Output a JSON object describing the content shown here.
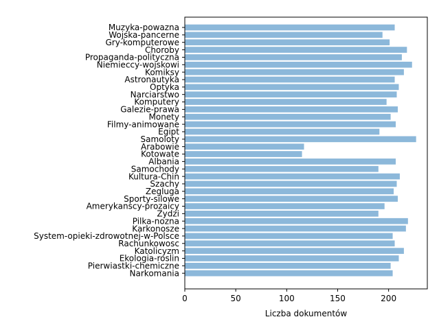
{
  "chart_data": {
    "type": "bar",
    "orientation": "horizontal",
    "categories": [
      "Muzyka-powazna",
      "Wojska-pancerne",
      "Gry-komputerowe",
      "Choroby",
      "Propaganda-polityczna",
      "Niemieccy-wojskowi",
      "Komiksy",
      "Astronautyka",
      "Optyka",
      "Narciarstwo",
      "Komputery",
      "Galezie-prawa",
      "Monety",
      "Filmy-animowane",
      "Egipt",
      "Samoloty",
      "Arabowie",
      "Kotowate",
      "Albania",
      "Samochody",
      "Kultura-Chin",
      "Szachy",
      "Zegluga",
      "Sporty-silowe",
      "Amerykanscy-prozaicy",
      "Zydzi",
      "Pilka-nozna",
      "Karkonosze",
      "System-opieki-zdrowotnej-w-Polsce",
      "Rachunkowosc",
      "Katolicyzm",
      "Ekologia-roslin",
      "Pierwiastki-chemiczne",
      "Narkomania"
    ],
    "values": [
      206,
      194,
      201,
      218,
      213,
      223,
      215,
      206,
      210,
      208,
      198,
      209,
      202,
      207,
      191,
      227,
      117,
      115,
      207,
      190,
      211,
      208,
      205,
      209,
      196,
      190,
      219,
      217,
      204,
      206,
      215,
      210,
      202,
      204
    ],
    "xlabel": "Liczba dokumentów",
    "ylabel": "",
    "xlim": [
      0,
      238
    ],
    "xticks": [
      0,
      50,
      100,
      150,
      200
    ],
    "bar_color": "#8cb8da",
    "grid": false
  }
}
